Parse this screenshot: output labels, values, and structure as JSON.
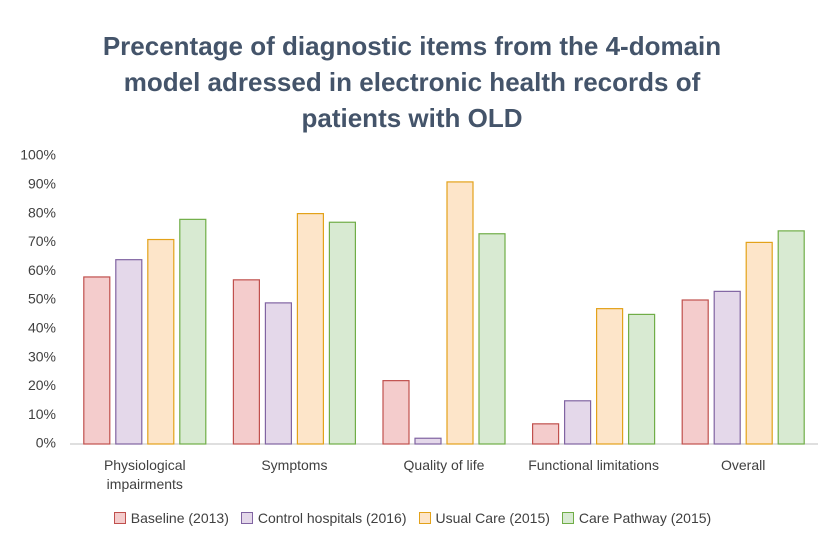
{
  "chart_data": {
    "type": "bar",
    "title": "Precentage of diagnostic items from the 4-domain model adressed in electronic health records of patients with OLD",
    "categories": [
      "Physiological impairments",
      "Symptoms",
      "Quality of life",
      "Functional limitations",
      "Overall"
    ],
    "series": [
      {
        "name": "Baseline (2013)",
        "color": "#f4cccc",
        "edgecolor": "#c0504d",
        "values": [
          58,
          57,
          22,
          7,
          50
        ]
      },
      {
        "name": "Control hospitals (2016)",
        "color": "#e4d8ea",
        "edgecolor": "#8064a2",
        "values": [
          64,
          49,
          2,
          15,
          53
        ]
      },
      {
        "name": "Usual Care (2015)",
        "color": "#fde5c9",
        "edgecolor": "#e3a21a",
        "values": [
          71,
          80,
          91,
          47,
          70
        ]
      },
      {
        "name": "Care Pathway (2015)",
        "color": "#d8ead2",
        "edgecolor": "#70ad47",
        "values": [
          78,
          77,
          73,
          45,
          74
        ]
      }
    ],
    "ylim": [
      0,
      100
    ],
    "yticks": [
      {
        "value": 0,
        "label": "0%"
      },
      {
        "value": 10,
        "label": "10%"
      },
      {
        "value": 20,
        "label": "20%"
      },
      {
        "value": 30,
        "label": "30%"
      },
      {
        "value": 40,
        "label": "40%"
      },
      {
        "value": 50,
        "label": "50%"
      },
      {
        "value": 60,
        "label": "60%"
      },
      {
        "value": 70,
        "label": "70%"
      },
      {
        "value": 80,
        "label": "80%"
      },
      {
        "value": 90,
        "label": "90%"
      },
      {
        "value": 100,
        "label": "100%"
      }
    ],
    "grid": false,
    "legend": "bottom"
  }
}
